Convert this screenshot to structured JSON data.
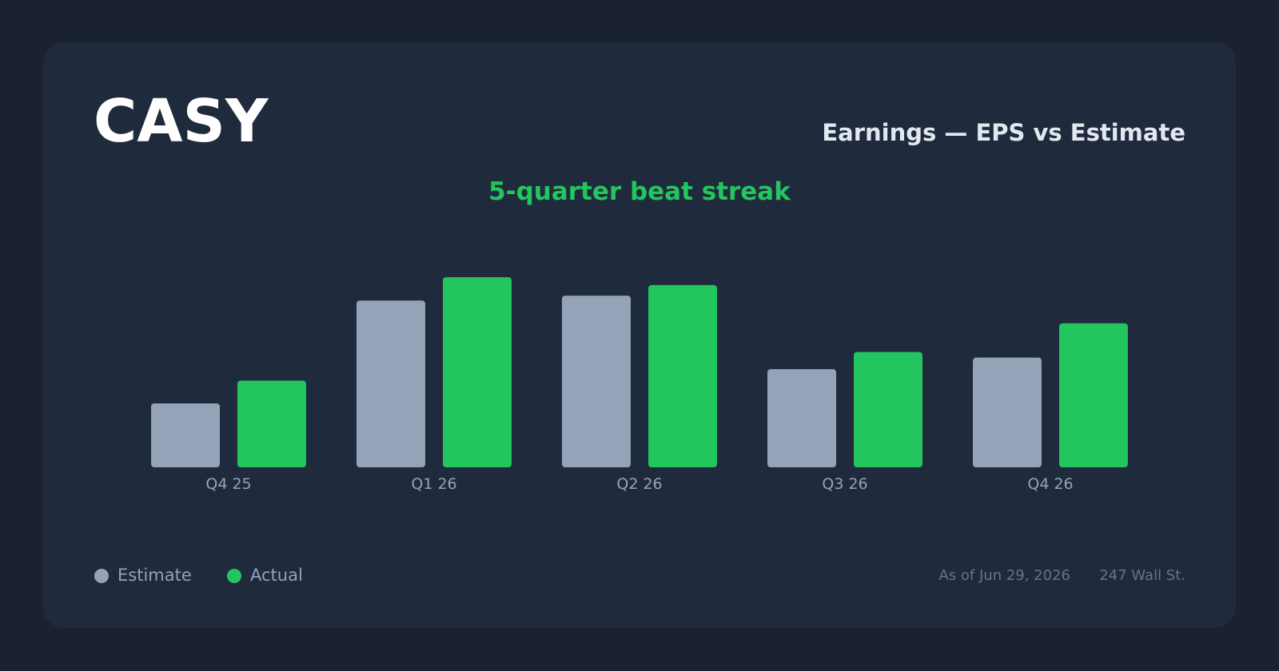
{
  "chart_data": {
    "type": "bar",
    "title": "CASY",
    "subtitle": "Earnings — EPS vs Estimate",
    "annotation": "5-quarter beat streak",
    "categories": [
      "Q4 25",
      "Q1 26",
      "Q2 26",
      "Q3 26",
      "Q4 26"
    ],
    "series": [
      {
        "name": "Estimate",
        "color": "#94a3b8",
        "values": [
          1.94,
          5.06,
          5.21,
          2.98,
          3.33
        ]
      },
      {
        "name": "Actual",
        "color": "#22c55e",
        "values": [
          2.63,
          5.77,
          5.53,
          3.5,
          4.37
        ]
      }
    ],
    "as_of": "As of Jun 29, 2026",
    "source": "247 Wall St."
  }
}
